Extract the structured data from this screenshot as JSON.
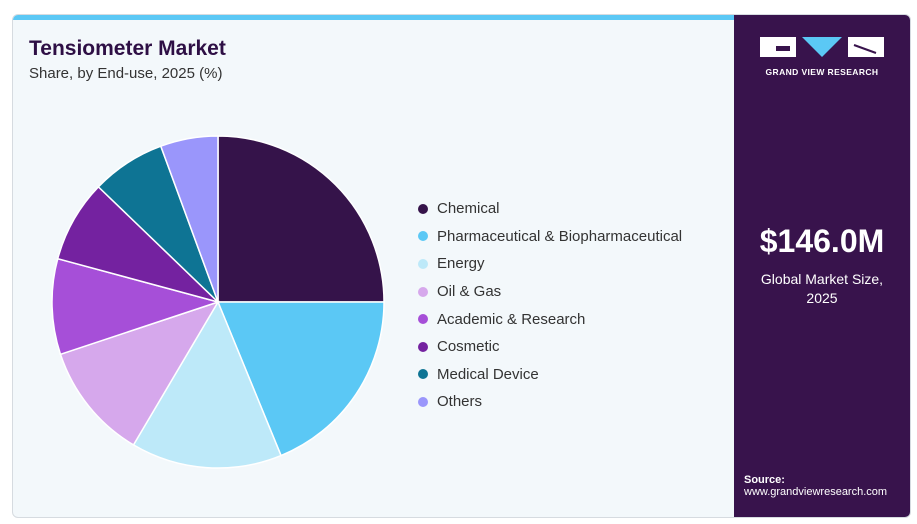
{
  "header": {
    "title": "Tensiometer Market",
    "subtitle": "Share, by End-use, 2025 (%)"
  },
  "brand": {
    "name": "GRAND VIEW RESEARCH"
  },
  "summary": {
    "value": "$146.0M",
    "caption_line1": "Global Market Size,",
    "caption_line2": "2025"
  },
  "source": {
    "label": "Source:",
    "url": "www.grandviewresearch.com"
  },
  "chart_data": {
    "type": "pie",
    "title": "Tensiometer Market",
    "subtitle": "Share, by End-use, 2025 (%)",
    "legend_placement": "right",
    "categories": [
      "Chemical",
      "Pharmaceutical & Biopharmaceutical",
      "Energy",
      "Oil & Gas",
      "Academic & Research",
      "Cosmetic",
      "Medical Device",
      "Others"
    ],
    "values": [
      25.0,
      18.8,
      14.7,
      11.4,
      9.3,
      8.0,
      7.2,
      5.6
    ],
    "colors": [
      "#35134a",
      "#5bc8f5",
      "#bde9f9",
      "#d6a8ec",
      "#a64fd8",
      "#7422a0",
      "#0e7494",
      "#9a96fb"
    ]
  }
}
